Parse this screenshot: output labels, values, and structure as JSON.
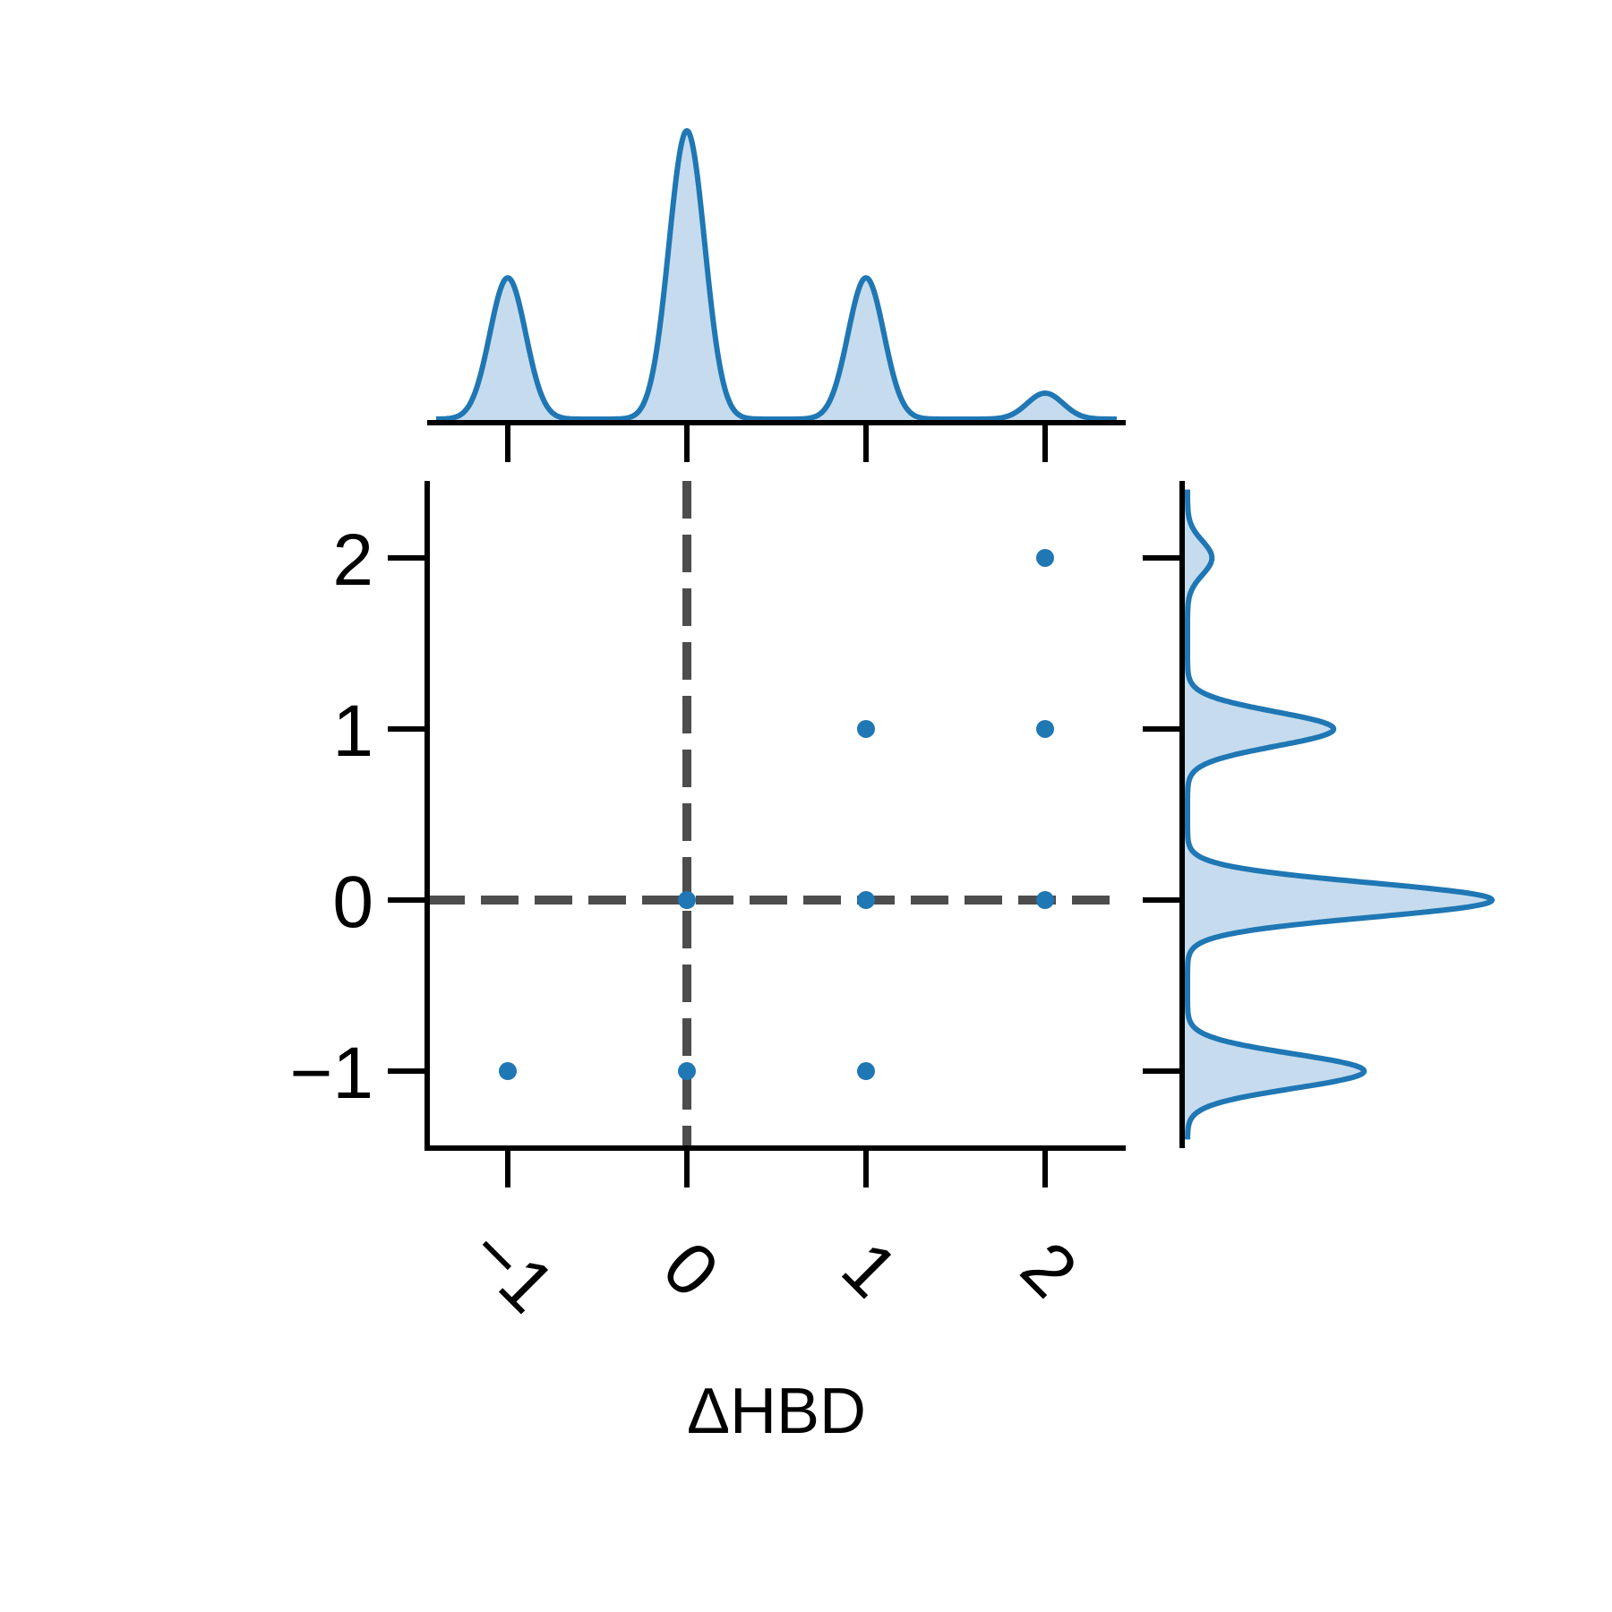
{
  "chart_data": {
    "type": "scatter",
    "xlabel": "ΔHBD",
    "ylabel": "",
    "x_ticks": [
      -1,
      0,
      1,
      2
    ],
    "x_tick_labels": [
      "−1",
      "0",
      "1",
      "2"
    ],
    "y_ticks": [
      -1,
      0,
      1,
      2
    ],
    "y_tick_labels": [
      "−1",
      "0",
      "1",
      "2"
    ],
    "xlim": [
      -1.45,
      2.45
    ],
    "ylim": [
      -1.45,
      2.45
    ],
    "points": [
      {
        "x": 2,
        "y": 2
      },
      {
        "x": 1,
        "y": 1
      },
      {
        "x": 2,
        "y": 1
      },
      {
        "x": 0,
        "y": 0
      },
      {
        "x": 1,
        "y": 0
      },
      {
        "x": 2,
        "y": 0
      },
      {
        "x": -1,
        "y": -1
      },
      {
        "x": 0,
        "y": -1
      },
      {
        "x": 1,
        "y": -1
      }
    ],
    "reference_lines": {
      "x": 0,
      "y": 0
    },
    "marginal_x_density": {
      "components": [
        {
          "center": -1,
          "weight": 0.49
        },
        {
          "center": 0,
          "weight": 1.0
        },
        {
          "center": 1,
          "weight": 0.49
        },
        {
          "center": 2,
          "weight": 0.09
        }
      ]
    },
    "marginal_y_density": {
      "components": [
        {
          "center": -1,
          "weight": 0.58
        },
        {
          "center": 0,
          "weight": 1.0
        },
        {
          "center": 1,
          "weight": 0.48
        },
        {
          "center": 2,
          "weight": 0.08
        }
      ]
    },
    "colors": {
      "series": "#1f77b4",
      "fill": "#c6dcee",
      "reference_line": "#4d4d4d",
      "axis": "#000000"
    }
  }
}
